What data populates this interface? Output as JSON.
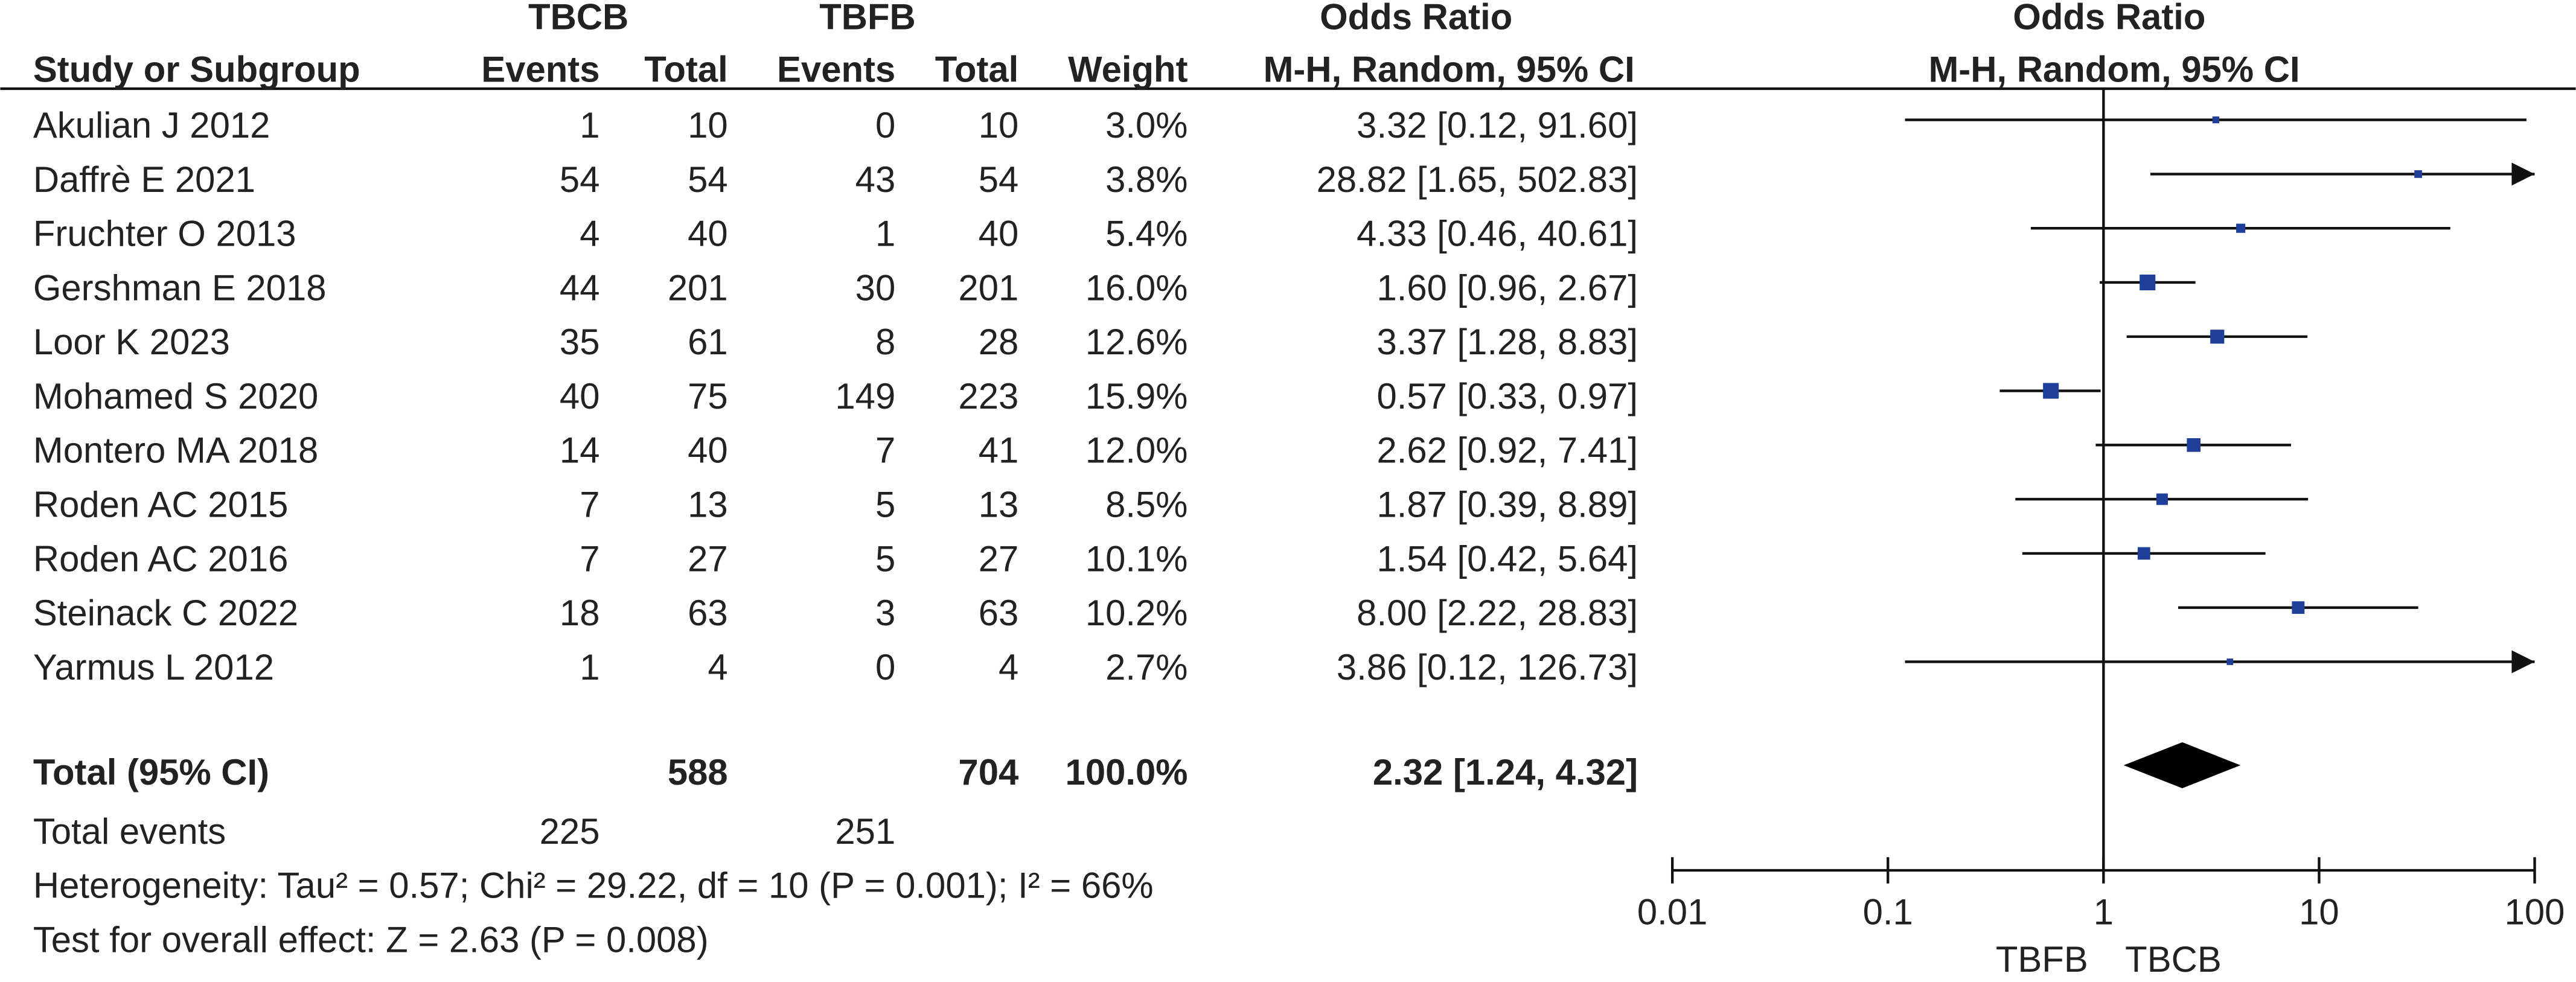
{
  "chart_data": {
    "type": "forest",
    "group_labels": [
      "TBCB",
      "TBFB"
    ],
    "effect_header": "Odds Ratio",
    "plot_header": "Odds Ratio",
    "columns": [
      "Study or Subgroup",
      "Events",
      "Total",
      "Events",
      "Total",
      "Weight",
      "M-H, Random, 95% CI"
    ],
    "plot_subheader": "M-H, Random, 95% CI",
    "studies": [
      {
        "name": "Akulian J 2012",
        "events1": 1,
        "total1": 10,
        "events2": 0,
        "total2": 10,
        "weight": 3.0,
        "weight_label": "3.0%",
        "or": 3.32,
        "lo": 0.12,
        "hi": 91.6,
        "ci_label": "3.32 [0.12, 91.60]"
      },
      {
        "name": "Daffrè E 2021",
        "events1": 54,
        "total1": 54,
        "events2": 43,
        "total2": 54,
        "weight": 3.8,
        "weight_label": "3.8%",
        "or": 28.82,
        "lo": 1.65,
        "hi": 502.83,
        "ci_label": "28.82 [1.65, 502.83]"
      },
      {
        "name": "Fruchter O 2013",
        "events1": 4,
        "total1": 40,
        "events2": 1,
        "total2": 40,
        "weight": 5.4,
        "weight_label": "5.4%",
        "or": 4.33,
        "lo": 0.46,
        "hi": 40.61,
        "ci_label": "4.33 [0.46, 40.61]"
      },
      {
        "name": "Gershman E 2018",
        "events1": 44,
        "total1": 201,
        "events2": 30,
        "total2": 201,
        "weight": 16.0,
        "weight_label": "16.0%",
        "or": 1.6,
        "lo": 0.96,
        "hi": 2.67,
        "ci_label": "1.60 [0.96, 2.67]"
      },
      {
        "name": "Loor K 2023",
        "events1": 35,
        "total1": 61,
        "events2": 8,
        "total2": 28,
        "weight": 12.6,
        "weight_label": "12.6%",
        "or": 3.37,
        "lo": 1.28,
        "hi": 8.83,
        "ci_label": "3.37 [1.28, 8.83]"
      },
      {
        "name": "Mohamed S 2020",
        "events1": 40,
        "total1": 75,
        "events2": 149,
        "total2": 223,
        "weight": 15.9,
        "weight_label": "15.9%",
        "or": 0.57,
        "lo": 0.33,
        "hi": 0.97,
        "ci_label": "0.57 [0.33, 0.97]"
      },
      {
        "name": "Montero MA 2018",
        "events1": 14,
        "total1": 40,
        "events2": 7,
        "total2": 41,
        "weight": 12.0,
        "weight_label": "12.0%",
        "or": 2.62,
        "lo": 0.92,
        "hi": 7.41,
        "ci_label": "2.62 [0.92, 7.41]"
      },
      {
        "name": "Roden AC 2015",
        "events1": 7,
        "total1": 13,
        "events2": 5,
        "total2": 13,
        "weight": 8.5,
        "weight_label": "8.5%",
        "or": 1.87,
        "lo": 0.39,
        "hi": 8.89,
        "ci_label": "1.87 [0.39, 8.89]"
      },
      {
        "name": "Roden AC 2016",
        "events1": 7,
        "total1": 27,
        "events2": 5,
        "total2": 27,
        "weight": 10.1,
        "weight_label": "10.1%",
        "or": 1.54,
        "lo": 0.42,
        "hi": 5.64,
        "ci_label": "1.54 [0.42, 5.64]"
      },
      {
        "name": "Steinack C 2022",
        "events1": 18,
        "total1": 63,
        "events2": 3,
        "total2": 63,
        "weight": 10.2,
        "weight_label": "10.2%",
        "or": 8.0,
        "lo": 2.22,
        "hi": 28.83,
        "ci_label": "8.00 [2.22, 28.83]"
      },
      {
        "name": "Yarmus L 2012",
        "events1": 1,
        "total1": 4,
        "events2": 0,
        "total2": 4,
        "weight": 2.7,
        "weight_label": "2.7%",
        "or": 3.86,
        "lo": 0.12,
        "hi": 126.73,
        "ci_label": "3.86 [0.12, 126.73]"
      }
    ],
    "total": {
      "name": "Total (95% CI)",
      "total1": 588,
      "total2": 704,
      "weight": 100.0,
      "weight_label": "100.0%",
      "or": 2.32,
      "lo": 1.24,
      "hi": 4.32,
      "ci_label": "2.32 [1.24, 4.32]"
    },
    "total_events": {
      "name": "Total events",
      "events1": 225,
      "events2": 251
    },
    "heterogeneity": "Heterogeneity: Tau² = 0.57; Chi² = 29.22, df = 10 (P = 0.001); I² = 66%",
    "overall_effect": "Test for overall effect: Z = 2.63 (P = 0.008)",
    "xscale": "log",
    "xlim": [
      0.01,
      100
    ],
    "xticks": [
      0.01,
      0.1,
      1,
      10,
      100
    ],
    "favours": [
      "TBFB",
      "TBCB"
    ],
    "color": "#1f3f9a",
    "diamond_color": "#000000"
  }
}
